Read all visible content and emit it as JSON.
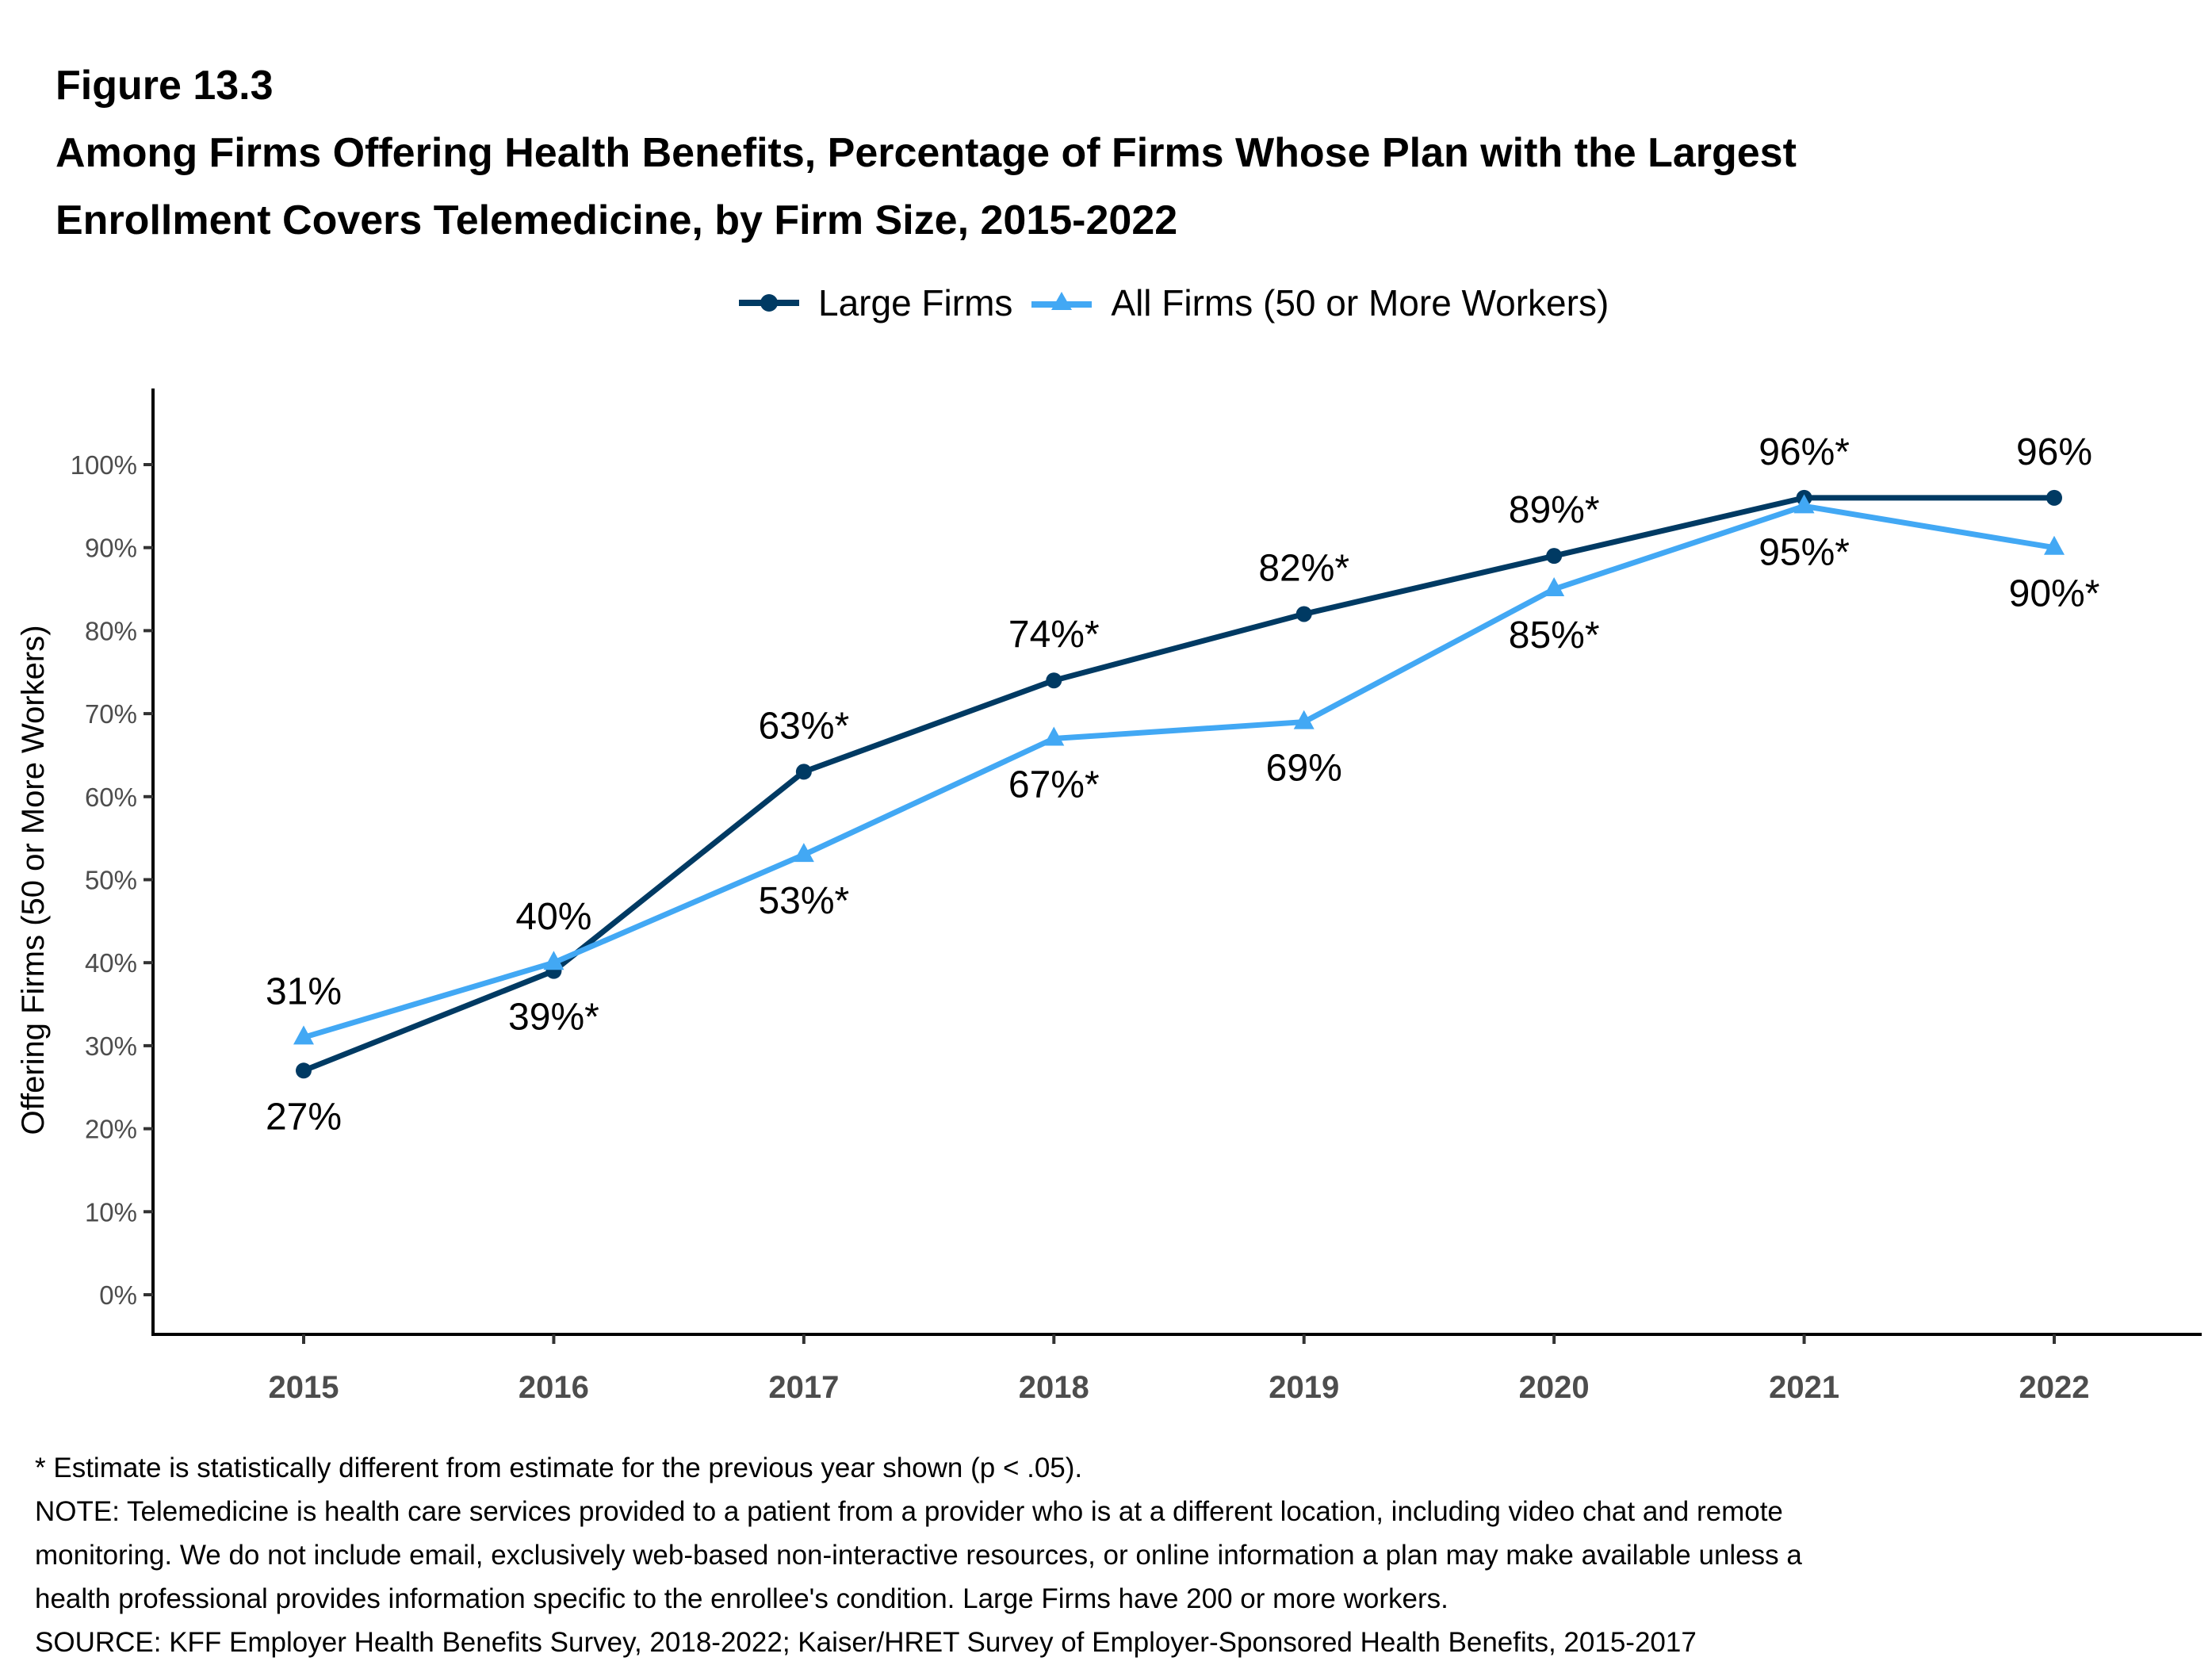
{
  "header": {
    "figure_label": "Figure 13.3",
    "title_line1": "Among Firms Offering Health Benefits, Percentage of Firms Whose Plan with the Largest",
    "title_line2": "Enrollment Covers Telemedicine, by Firm Size, 2015-2022"
  },
  "colors": {
    "large_firms": "#003a63",
    "all_firms": "#42a8f4",
    "axis": "#000000",
    "tick_label": "#4d4d4d"
  },
  "chart_data": {
    "type": "line",
    "title": "Among Firms Offering Health Benefits, Percentage of Firms Whose Plan with the Largest Enrollment Covers Telemedicine, by Firm Size, 2015-2022",
    "xlabel": "",
    "ylabel": "Offering Firms (50 or More Workers)",
    "x": [
      "2015",
      "2016",
      "2017",
      "2018",
      "2019",
      "2020",
      "2021",
      "2022"
    ],
    "ylim": [
      0,
      100
    ],
    "yticks": [
      0,
      10,
      20,
      30,
      40,
      50,
      60,
      70,
      80,
      90,
      100
    ],
    "ytick_labels": [
      "0%",
      "10%",
      "20%",
      "30%",
      "40%",
      "50%",
      "60%",
      "70%",
      "80%",
      "90%",
      "100%"
    ],
    "grid": false,
    "legend_position": "top-center",
    "series": [
      {
        "name": "Large Firms",
        "marker": "circle",
        "color": "#003a63",
        "values": [
          27,
          39,
          63,
          74,
          82,
          89,
          96,
          96
        ],
        "labels": [
          "27%",
          "39%*",
          "63%*",
          "74%*",
          "82%*",
          "89%*",
          "96%*",
          "96%"
        ],
        "label_side": [
          "below",
          "below",
          "above",
          "above",
          "above",
          "above",
          "above",
          "above"
        ]
      },
      {
        "name": "All Firms (50 or More Workers)",
        "marker": "triangle",
        "color": "#42a8f4",
        "values": [
          31,
          40,
          53,
          67,
          69,
          85,
          95,
          90
        ],
        "labels": [
          "31%",
          "40%",
          "53%*",
          "67%*",
          "69%",
          "85%*",
          "95%*",
          "90%*"
        ],
        "label_side": [
          "above",
          "above",
          "below",
          "below",
          "below",
          "below",
          "below",
          "below"
        ]
      }
    ]
  },
  "footnotes": {
    "asterisk_note": "* Estimate is statistically different from estimate for the previous year shown (p < .05).",
    "note_line1": "NOTE: Telemedicine is health care services provided to a patient from a provider who is at a different location, including video chat and remote",
    "note_line2": "monitoring.  We do not include email, exclusively web-based non-interactive resources, or online information a plan may make available unless a",
    "note_line3": "health professional provides information specific to the enrollee's condition.  Large Firms have 200 or more workers.",
    "source": "SOURCE: KFF Employer Health Benefits Survey, 2018-2022; Kaiser/HRET Survey of Employer-Sponsored Health Benefits, 2015-2017"
  }
}
